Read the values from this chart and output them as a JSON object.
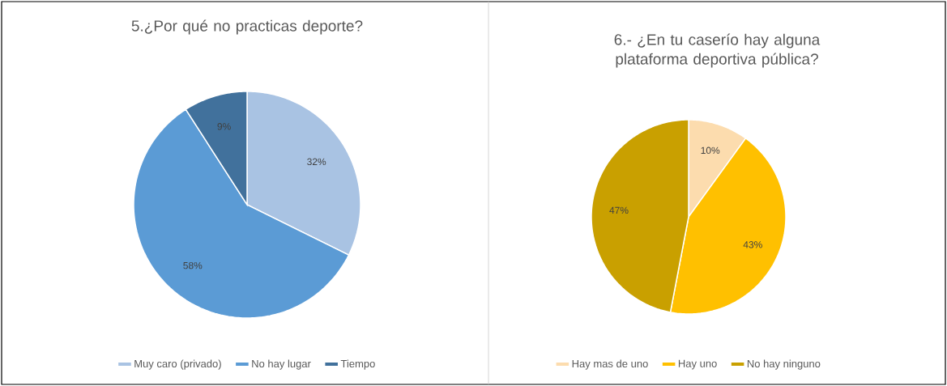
{
  "chart_data": [
    {
      "type": "pie",
      "title": "5.¿Por qué no practicas deporte?",
      "categories": [
        "Muy caro (privado)",
        "No hay lugar",
        "Tiempo"
      ],
      "values": [
        32,
        58,
        9
      ],
      "value_labels": [
        "32%",
        "58%",
        "9%"
      ],
      "colors": [
        "#a9c3e3",
        "#5b9bd5",
        "#41719c"
      ],
      "legend": "bottom"
    },
    {
      "type": "pie",
      "title": "6.- ¿En tu caserío hay alguna plataforma deportiva pública?",
      "categories": [
        "Hay mas de uno",
        "Hay uno",
        "No hay ninguno"
      ],
      "values": [
        10,
        43,
        47
      ],
      "value_labels": [
        "10%",
        "43%",
        "47%"
      ],
      "colors": [
        "#fcdcae",
        "#ffc000",
        "#c9a000"
      ],
      "legend": "bottom"
    }
  ]
}
